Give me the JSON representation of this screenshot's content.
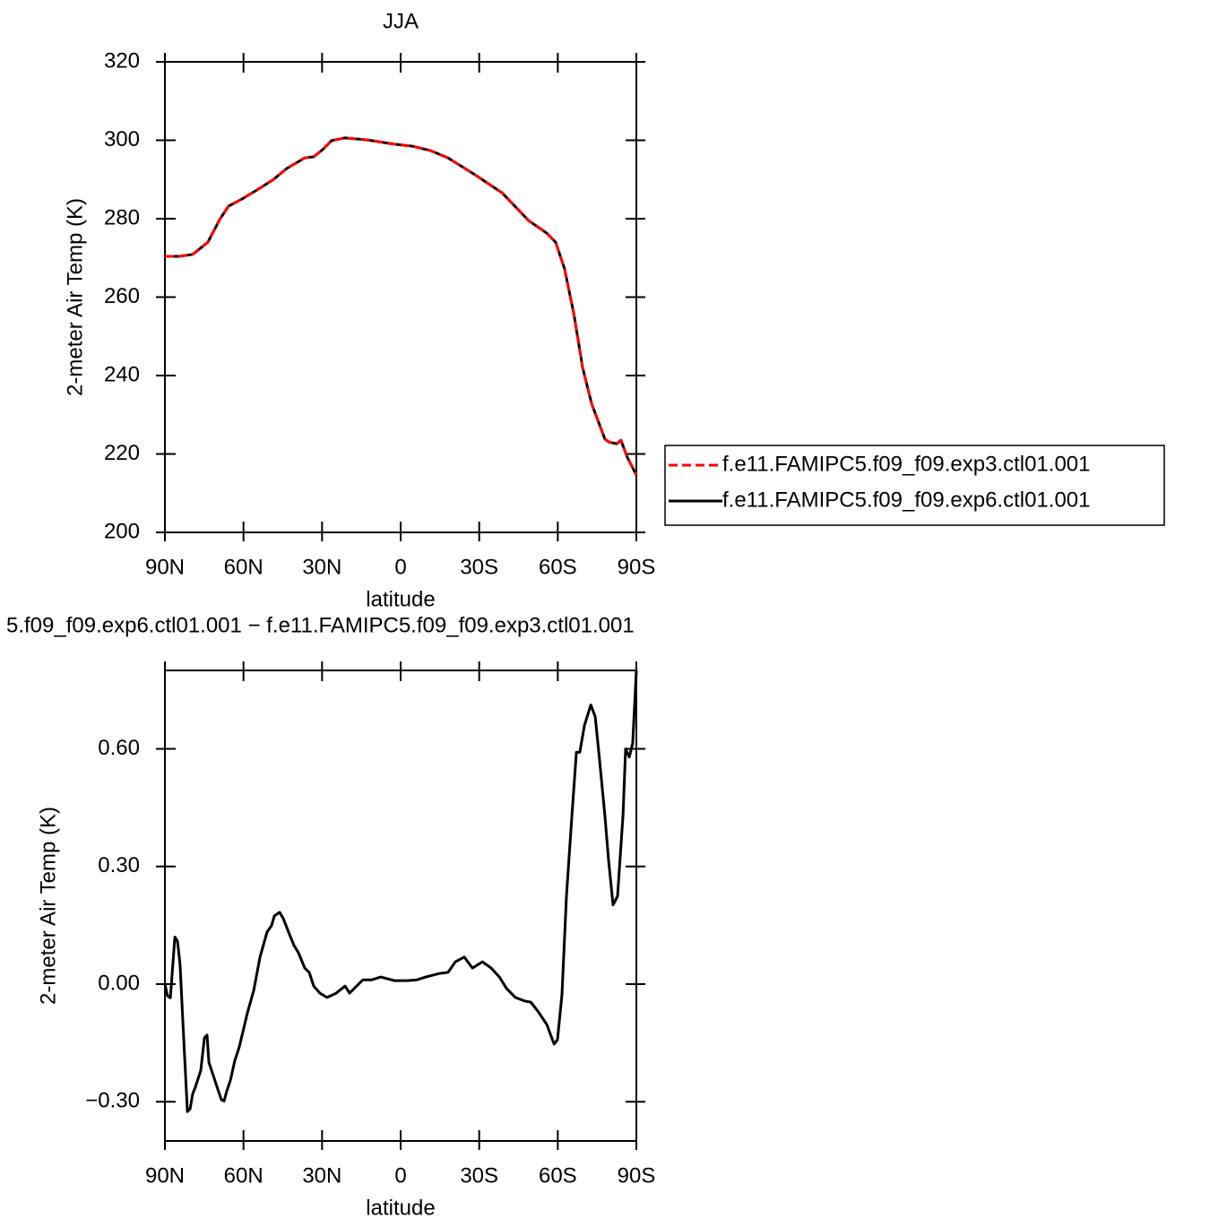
{
  "chart_data": [
    {
      "type": "line",
      "title": "JJA",
      "x_label": "latitude",
      "y_label": "2-meter Air Temp (K)",
      "x": [
        90,
        84.5,
        79.4,
        73.6,
        69.1,
        65.7,
        60.6,
        53.7,
        48.6,
        43.5,
        36.6,
        33.2,
        29.8,
        26.4,
        21.2,
        12.7,
        2.4,
        -4.4,
        -11.3,
        -18.1,
        -28.4,
        -38.7,
        -48.9,
        -55.8,
        -59.2,
        -62.6,
        -66.1,
        -69.5,
        -72.9,
        -78.0,
        -79.7,
        -82.5,
        -84.1,
        -86.5,
        -90
      ],
      "series": [
        {
          "name": "f.e11.FAMIPC5.f09_f09.exp3.ctl01.001",
          "color": "#ff0000",
          "dash": "dashed",
          "values": [
            270.4,
            270.4,
            270.9,
            274,
            279.8,
            283.2,
            285,
            287.8,
            290,
            292.8,
            295.5,
            295.8,
            297.6,
            299.9,
            300.6,
            300.1,
            299,
            298.5,
            297.4,
            295.5,
            291.2,
            286.6,
            279.5,
            276.3,
            274,
            267.2,
            255.8,
            242,
            232.9,
            223.8,
            223,
            222.6,
            223.5,
            219.2,
            214.6
          ]
        },
        {
          "name": "f.e11.FAMIPC5.f09_f09.exp6.ctl01.001",
          "color": "#000000",
          "dash": "solid",
          "values": [
            270.4,
            270.4,
            270.9,
            274,
            279.8,
            283.2,
            285,
            287.8,
            290,
            292.8,
            295.5,
            295.8,
            297.6,
            299.9,
            300.6,
            300.1,
            299,
            298.5,
            297.4,
            295.5,
            291.2,
            286.6,
            279.5,
            276.3,
            274,
            267.2,
            255.8,
            242,
            232.9,
            223.8,
            223,
            222.6,
            223.5,
            219.2,
            214.6
          ]
        }
      ],
      "xlim": [
        90,
        -90
      ],
      "xticks": [
        {
          "value": 90,
          "label": "90N"
        },
        {
          "value": 60,
          "label": "60N"
        },
        {
          "value": 30,
          "label": "30N"
        },
        0,
        {
          "value": -30,
          "label": "30S"
        },
        {
          "value": -60,
          "label": "60S"
        },
        {
          "value": -90,
          "label": "90S"
        }
      ],
      "ylim": [
        200,
        320
      ],
      "yticks": [
        200,
        220,
        240,
        260,
        280,
        300,
        320
      ],
      "legend": "right"
    },
    {
      "type": "line",
      "title": "5.f09_f09.exp6.ctl01.001 − f.e11.FAMIPC5.f09_f09.exp3.ctl01.001",
      "x_label": "latitude",
      "y_label": "2-meter Air Temp (K)",
      "x": [
        90,
        89,
        87.9,
        86.2,
        85.2,
        84.2,
        82.8,
        81.4,
        80.4,
        79.4,
        78.4,
        76.3,
        74.9,
        73.9,
        73.2,
        71.5,
        69.8,
        68.4,
        67.4,
        66.4,
        65.0,
        63.3,
        61.6,
        58.5,
        56.1,
        53.7,
        51.0,
        49.3,
        48.2,
        46.2,
        44.8,
        42.8,
        40.7,
        39.0,
        36.6,
        34.9,
        33.2,
        30.8,
        28.1,
        24.6,
        21.2,
        19.5,
        16.8,
        14.4,
        11.0,
        7.6,
        2.4,
        -2.7,
        -6.2,
        -9.6,
        -14.7,
        -18.1,
        -20.9,
        -24.3,
        -27.4,
        -31.2,
        -34.6,
        -37.7,
        -40.4,
        -43.8,
        -47.3,
        -49.7,
        -52.4,
        -55.8,
        -58.6,
        -59.9,
        -61.6,
        -63.3,
        -65.4,
        -67.1,
        -68.4,
        -70.2,
        -72.6,
        -74.3,
        -76.0,
        -78.0,
        -79.4,
        -81.1,
        -82.8,
        -84.9,
        -85.9,
        -87.3,
        -88.6,
        -90
      ],
      "values": [
        0.0,
        -0.03,
        -0.035,
        0.12,
        0.11,
        0.05,
        -0.14,
        -0.325,
        -0.318,
        -0.28,
        -0.263,
        -0.22,
        -0.137,
        -0.13,
        -0.2,
        -0.234,
        -0.268,
        -0.295,
        -0.298,
        -0.273,
        -0.245,
        -0.195,
        -0.16,
        -0.073,
        -0.016,
        0.069,
        0.133,
        0.149,
        0.174,
        0.183,
        0.167,
        0.133,
        0.098,
        0.08,
        0.041,
        0.03,
        -0.005,
        -0.023,
        -0.034,
        -0.023,
        -0.005,
        -0.023,
        -0.005,
        0.011,
        0.011,
        0.018,
        0.009,
        0.009,
        0.011,
        0.018,
        0.027,
        0.03,
        0.057,
        0.069,
        0.041,
        0.057,
        0.041,
        0.018,
        -0.011,
        -0.034,
        -0.043,
        -0.046,
        -0.069,
        -0.103,
        -0.153,
        -0.142,
        -0.027,
        0.224,
        0.43,
        0.591,
        0.591,
        0.66,
        0.712,
        0.682,
        0.568,
        0.43,
        0.316,
        0.202,
        0.224,
        0.43,
        0.6,
        0.579,
        0.614,
        0.8
      ],
      "color": "#000000",
      "xlim": [
        90,
        -90
      ],
      "xticks": [
        {
          "value": 90,
          "label": "90N"
        },
        {
          "value": 60,
          "label": "60N"
        },
        {
          "value": 30,
          "label": "30N"
        },
        0,
        {
          "value": -30,
          "label": "30S"
        },
        {
          "value": -60,
          "label": "60S"
        },
        {
          "value": -90,
          "label": "90S"
        }
      ],
      "ylim": [
        -0.4,
        0.8
      ],
      "yticks": [
        {
          "value": -0.3,
          "label": "−0.30"
        },
        {
          "value": 0,
          "label": "0.00"
        },
        {
          "value": 0.3,
          "label": "0.30"
        },
        {
          "value": 0.6,
          "label": "0.60"
        }
      ]
    }
  ]
}
